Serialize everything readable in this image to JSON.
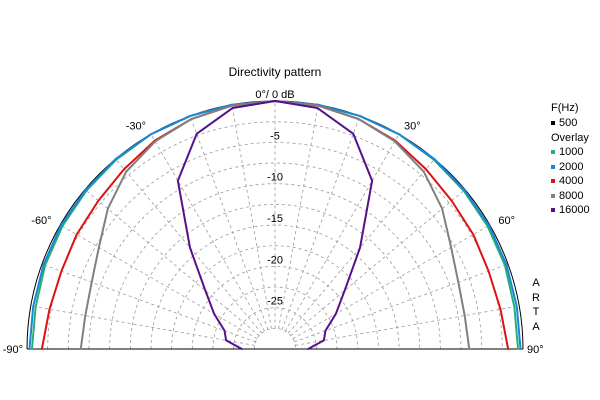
{
  "chart_data": {
    "type": "polar",
    "title": "Directivity pattern",
    "angle_unit": "deg",
    "angle_range": [
      -90,
      90
    ],
    "radial_unit": "dB",
    "radial_range": [
      -30,
      0
    ],
    "radial_ticks": [
      {
        "value": 0,
        "label": "0°/ 0 dB"
      },
      {
        "value": -5,
        "label": "-5"
      },
      {
        "value": -10,
        "label": "-10"
      },
      {
        "value": -15,
        "label": "-15"
      },
      {
        "value": -20,
        "label": "-20"
      },
      {
        "value": -25,
        "label": "-25"
      }
    ],
    "angle_tick_labels": [
      {
        "angle": -90,
        "label": "-90°"
      },
      {
        "angle": -60,
        "label": "-60°"
      },
      {
        "angle": -30,
        "label": "-30°"
      },
      {
        "angle": 30,
        "label": "30°"
      },
      {
        "angle": 60,
        "label": "60°"
      },
      {
        "angle": 90,
        "label": "90°"
      }
    ],
    "grid": true,
    "legend_title": "F(Hz)",
    "legend_subtitle": "Overlay",
    "angles": [
      -90,
      -80,
      -70,
      -60,
      -50,
      -40,
      -30,
      -20,
      -10,
      0,
      10,
      20,
      30,
      40,
      50,
      60,
      70,
      80,
      90
    ],
    "series": [
      {
        "name": "500",
        "color": "#000000",
        "values": []
      },
      {
        "name": "1000",
        "color": "#22b07a",
        "values": [
          -0.6,
          -0.6,
          -0.4,
          -0.3,
          -0.2,
          -0.1,
          0,
          0,
          0,
          0,
          0,
          0,
          0,
          -0.1,
          -0.2,
          -0.3,
          -0.4,
          -0.6,
          -0.6
        ]
      },
      {
        "name": "2000",
        "color": "#1c86d6",
        "values": [
          -0.3,
          -0.3,
          -0.2,
          -0.1,
          -0.1,
          0,
          0,
          0,
          0,
          0,
          0,
          0,
          0,
          0,
          -0.1,
          -0.1,
          -0.2,
          -0.3,
          -0.3
        ]
      },
      {
        "name": "4000",
        "color": "#dd1111",
        "values": [
          -1.8,
          -2.3,
          -2.5,
          -2.3,
          -2.1,
          -1.6,
          -0.9,
          -0.4,
          -0.1,
          0,
          -0.1,
          -0.4,
          -0.9,
          -1.6,
          -2.1,
          -2.3,
          -2.5,
          -2.3,
          -1.8
        ]
      },
      {
        "name": "8000",
        "color": "#808080",
        "values": [
          -6.5,
          -6.7,
          -6.4,
          -5.4,
          -3.6,
          -2.0,
          -1.0,
          -0.4,
          -0.1,
          0,
          -0.1,
          -0.4,
          -1.0,
          -2.0,
          -3.6,
          -5.4,
          -6.4,
          -6.7,
          -6.5
        ]
      },
      {
        "name": "16000",
        "color": "#55108a",
        "values": [
          -26.0,
          -24.0,
          -23.5,
          -21.5,
          -19.0,
          -14.0,
          -6.5,
          -2.3,
          -0.4,
          0,
          -0.4,
          -2.3,
          -6.5,
          -14.0,
          -19.0,
          -21.5,
          -23.5,
          -24.0,
          -26.0
        ]
      }
    ],
    "watermark": [
      "A",
      "R",
      "T",
      "A"
    ]
  }
}
